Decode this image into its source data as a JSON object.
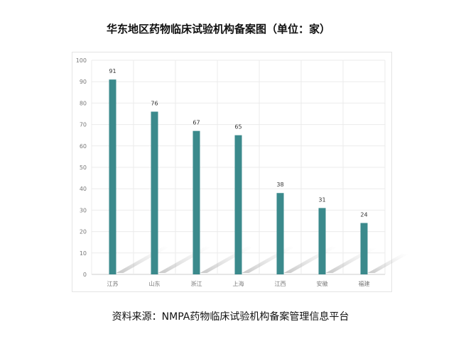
{
  "title": "华东地区药物临床试验机构备案图（单位：家）",
  "source": "资料来源：NMPA药物临床试验机构备案管理信息平台",
  "colors": {
    "bar": "#3b8a8c",
    "grid": "#ebebeb",
    "axis": "#cccccc"
  },
  "chart_data": {
    "type": "bar",
    "title": "华东地区药物临床试验机构备案图（单位：家）",
    "xlabel": "",
    "ylabel": "",
    "categories": [
      "江苏",
      "山东",
      "浙江",
      "上海",
      "江西",
      "安徽",
      "福建"
    ],
    "values": [
      91,
      76,
      67,
      65,
      38,
      31,
      24
    ],
    "ylim": [
      0,
      100
    ],
    "yticks": [
      0,
      10,
      20,
      30,
      40,
      50,
      60,
      70,
      80,
      90,
      100
    ],
    "grid": true,
    "data_labels": true
  }
}
